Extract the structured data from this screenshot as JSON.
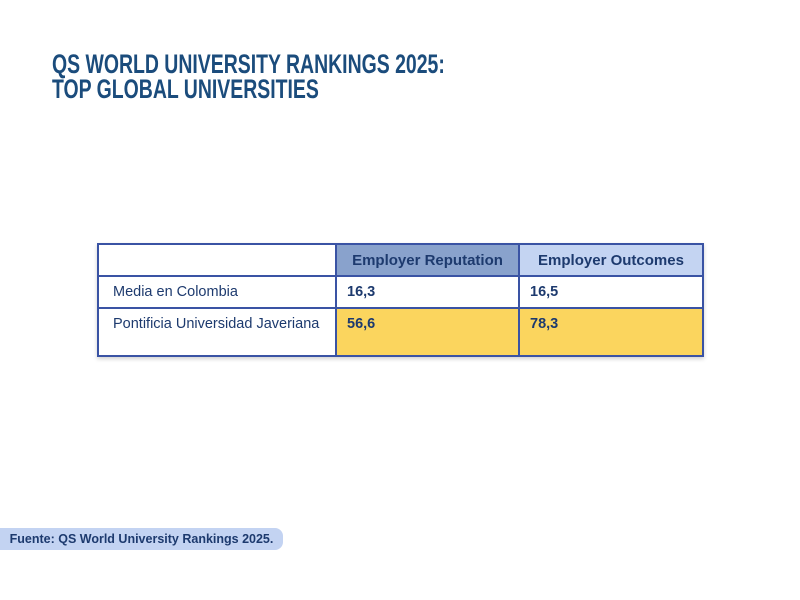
{
  "title": {
    "line1": "QS WORLD UNIVERSITY RANKINGS 2025:",
    "line2": "TOP GLOBAL UNIVERSITIES",
    "color": "#1b4c7c"
  },
  "table": {
    "columns": [
      "",
      "Employer Reputation",
      "Employer Outcomes"
    ],
    "rows": [
      {
        "label": "Media en Colombia",
        "employer_reputation": "16,3",
        "employer_outcomes": "16,5",
        "highlighted": false
      },
      {
        "label": "Pontificia Universidad Javeriana",
        "employer_reputation": "56,6",
        "employer_outcomes": "78,3",
        "highlighted": true
      }
    ],
    "colors": {
      "border": "#3a53a4",
      "text": "#1d3a6e",
      "header_reputation_bg": "#89a2cc",
      "header_outcomes_bg": "#c4d4f2",
      "highlight_bg": "#fbd55e"
    }
  },
  "footer": {
    "source_label": "Fuente: QS World University Rankings 2025.",
    "bg": "#c3d3f2",
    "text_color": "#1d3a6e"
  },
  "chart_data": {
    "type": "table",
    "title": "QS World University Rankings 2025: Top Global Universities",
    "columns": [
      "",
      "Employer Reputation",
      "Employer Outcomes"
    ],
    "rows": [
      {
        "label": "Media en Colombia",
        "values": [
          16.3,
          16.5
        ],
        "highlighted": false
      },
      {
        "label": "Pontificia Universidad Javeriana",
        "values": [
          56.6,
          78.3
        ],
        "highlighted": true
      }
    ],
    "value_format": "decimal-comma",
    "source": "Fuente: QS World University Rankings 2025.",
    "layout": {
      "highlight_color": "#fbd55e",
      "border_color": "#3a53a4",
      "background": "#ffffff"
    }
  }
}
